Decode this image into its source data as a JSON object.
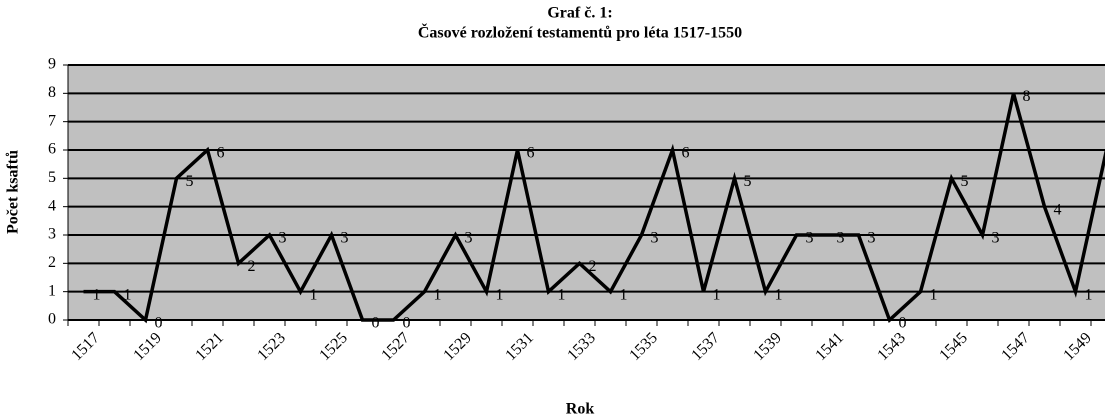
{
  "chart_data": {
    "type": "line",
    "title": "Graf č. 1:",
    "subtitle": "Časové rozložení testamentů pro léta 1517-1550",
    "x_label": "Rok",
    "y_label": "Počet ksaftů",
    "categories": [
      "1517",
      null,
      "1519",
      null,
      "1521",
      null,
      "1523",
      null,
      "1525",
      null,
      "1527",
      null,
      "1529",
      null,
      "1531",
      null,
      "1533",
      null,
      "1535",
      null,
      "1537",
      null,
      "1539",
      null,
      "1541",
      null,
      "1543",
      null,
      "1545",
      null,
      "1547",
      null,
      "1549",
      null
    ],
    "values": [
      1,
      1,
      0,
      5,
      6,
      2,
      3,
      1,
      3,
      0,
      0,
      1,
      3,
      1,
      6,
      1,
      2,
      1,
      3,
      6,
      1,
      5,
      1,
      3,
      3,
      3,
      0,
      1,
      5,
      3,
      8,
      4,
      1,
      6
    ],
    "color": "#000000",
    "ylim": [
      0,
      9
    ],
    "yticks": [
      0,
      1,
      2,
      3,
      4,
      5,
      6,
      7,
      8,
      9
    ],
    "grid": true
  }
}
